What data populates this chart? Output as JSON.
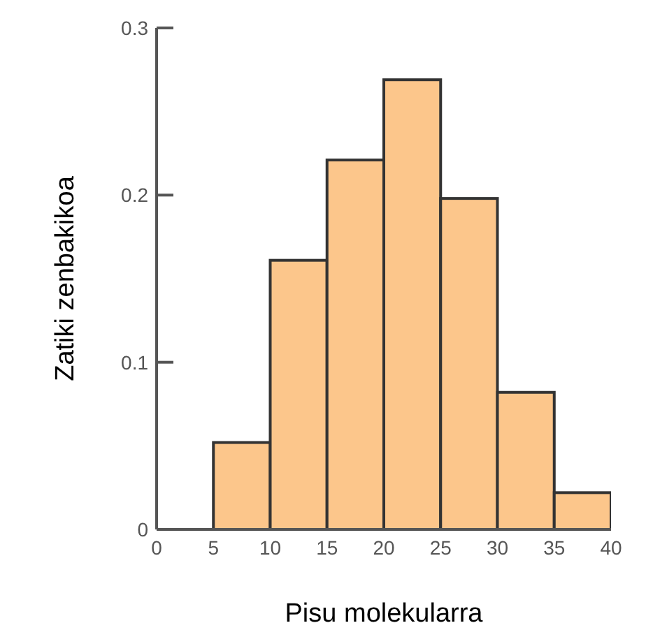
{
  "chart_data": {
    "type": "histogram",
    "xlabel": "Pisu molekularra",
    "ylabel": "Zatiki zenbakikoa",
    "bins": [
      5,
      10,
      15,
      20,
      25,
      30,
      35,
      40
    ],
    "values": [
      0.052,
      0.161,
      0.221,
      0.269,
      0.198,
      0.082,
      0.022
    ],
    "color": "#fcc68b",
    "xlim": [
      0,
      40
    ],
    "xticks": [
      0,
      5,
      10,
      15,
      20,
      25,
      30,
      35,
      40
    ],
    "ylim": [
      0,
      0.3
    ],
    "yticks": [
      0,
      0.1,
      0.2,
      0.3
    ],
    "grid": false,
    "legend": false
  }
}
